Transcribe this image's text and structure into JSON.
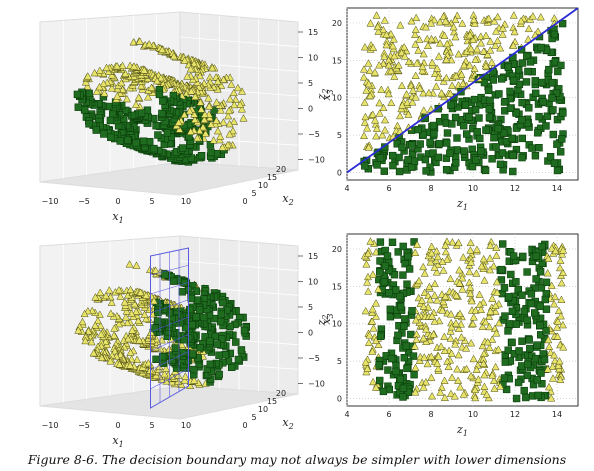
{
  "caption": "Figure 8-6. The decision boundary may not always be simpler with lower dimensions",
  "colors": {
    "square_fill": "#1f6b1f",
    "square_stroke": "#0b3d0b",
    "triangle_fill": "#e8e46a",
    "triangle_stroke": "#4a4a10",
    "boundary_line": "#2b2bd6",
    "boundary_plane": "#5a5ae0",
    "pane": "#f2f2f2",
    "grid": "#c8c8c8"
  },
  "chart_data": [
    {
      "type": "scatter",
      "projection": "3d",
      "panel": "top-left",
      "title": "",
      "series": [],
      "xlabel": "x1",
      "ylabel": "x2",
      "zlabel": "x3",
      "x_ticks": [
        "−10",
        "−5",
        "0",
        "5",
        "10"
      ],
      "y_ticks": [
        "0",
        "5",
        "10",
        "15",
        "20"
      ],
      "z_ticks": [
        "15",
        "10",
        "5",
        "0",
        "−5",
        "−10"
      ],
      "xlim": [
        -12,
        14
      ],
      "ylim": [
        0,
        21
      ],
      "zlim": [
        -12,
        16
      ],
      "boundary": "none",
      "grid": true
    },
    {
      "type": "scatter",
      "panel": "top-right",
      "title": "",
      "series": [],
      "xlabel": "z1",
      "ylabel": "z2",
      "xlim": [
        4,
        15
      ],
      "ylim": [
        -1,
        22
      ],
      "x_ticks": [
        4,
        6,
        8,
        10,
        12,
        14
      ],
      "y_ticks": [
        0,
        5,
        10,
        15,
        20
      ],
      "boundary": {
        "kind": "line",
        "x": [
          4,
          15
        ],
        "y": [
          0,
          22
        ]
      },
      "class_rule": "square below line z2 = 2(z1 - 4), triangle above",
      "grid": true
    },
    {
      "type": "scatter",
      "projection": "3d",
      "panel": "bottom-left",
      "title": "",
      "series": [],
      "xlabel": "x1",
      "ylabel": "x2",
      "zlabel": "x3",
      "x_ticks": [
        "−10",
        "−5",
        "0",
        "5",
        "10"
      ],
      "y_ticks": [
        "0",
        "5",
        "10",
        "15",
        "20"
      ],
      "z_ticks": [
        "15",
        "10",
        "5",
        "0",
        "−5",
        "−10"
      ],
      "xlim": [
        -12,
        14
      ],
      "ylim": [
        0,
        21
      ],
      "zlim": [
        -12,
        16
      ],
      "boundary": {
        "kind": "plane",
        "x1": 5
      },
      "grid": true
    },
    {
      "type": "scatter",
      "panel": "bottom-right",
      "title": "",
      "series": [],
      "xlabel": "z1",
      "ylabel": "z2",
      "xlim": [
        4,
        15
      ],
      "ylim": [
        -1,
        22
      ],
      "x_ticks": [
        4,
        6,
        8,
        10,
        12,
        14
      ],
      "y_ticks": [
        0,
        5,
        10,
        15,
        20
      ],
      "boundary": "none",
      "class_rule": "square for z1 in [5.5,7.2] or [11.3,13.5], triangle otherwise",
      "grid": true
    }
  ]
}
